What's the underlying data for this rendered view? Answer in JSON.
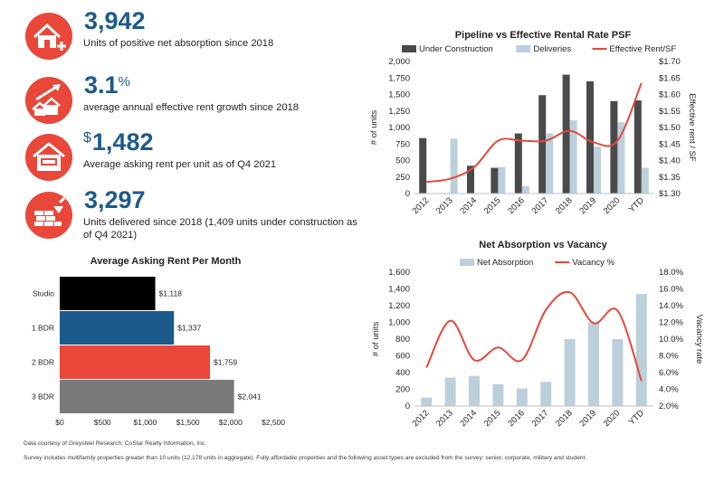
{
  "stats": [
    {
      "value": "3,942",
      "prefix": "",
      "suffix": "",
      "label": "Units of positive net absorption since 2018",
      "icon": "house-plus-icon"
    },
    {
      "value": "3.1",
      "prefix": "",
      "suffix": "%",
      "label": "average annual effective rent growth since 2018",
      "icon": "houses-growth-arrow-icon"
    },
    {
      "value": "1,482",
      "prefix": "$",
      "suffix": "",
      "label": "Average asking rent per unit as of Q4 2021",
      "icon": "rent-sign-house-icon"
    },
    {
      "value": "3,297",
      "prefix": "",
      "suffix": "",
      "label": "Units delivered since 2018 (1,409 units under construction as of Q4 2021)",
      "icon": "brick-wall-trowel-icon"
    }
  ],
  "colors": {
    "accent_red": "#e8473a",
    "value_blue": "#1d5a8c",
    "dark_bar": "#4a4a4a",
    "light_bar": "#bccfdb"
  },
  "footnotes": {
    "source": "Data courtesy of Greysteel Research; CoStar Realty Information, Inc.",
    "survey": "Survey includes multifamily properties greater than 10 units (12,178 units in aggregate). Fully affordable properties and the following asset types are excluded from the survey: senior, corporate, military and student."
  },
  "chart_data": [
    {
      "type": "bar",
      "orientation": "horizontal",
      "title": "Average Asking Rent Per Month",
      "categories": [
        "Studio",
        "1 BDR",
        "2 BDR",
        "3 BDR"
      ],
      "values": [
        1118,
        1337,
        1759,
        2041
      ],
      "value_labels": [
        "$1,118",
        "$1,337",
        "$1,759",
        "$2,041"
      ],
      "bar_colors": [
        "#000000",
        "#1d5a8c",
        "#e8473a",
        "#7a7a7a"
      ],
      "xlim": [
        0,
        2500
      ],
      "x_ticks": [
        "$0",
        "$500",
        "$1,000",
        "$1,500",
        "$2,000",
        "$2,500"
      ],
      "grid": false
    },
    {
      "type": "bar+line",
      "title": "Pipeline vs Effective Rental Rate PSF",
      "categories": [
        "2012",
        "2013",
        "2014",
        "2015",
        "2016",
        "2017",
        "2018",
        "2019",
        "2020",
        "YTD"
      ],
      "series": [
        {
          "name": "Under Construction",
          "type": "bar",
          "axis": "left",
          "color": "#4a4a4a",
          "values": [
            840,
            0,
            420,
            390,
            910,
            1490,
            1800,
            1700,
            1400,
            1410
          ]
        },
        {
          "name": "Deliveries",
          "type": "bar",
          "axis": "left",
          "color": "#bccfdb",
          "values": [
            0,
            830,
            0,
            400,
            110,
            910,
            1110,
            710,
            1080,
            390
          ]
        },
        {
          "name": "Effective Rent/SF",
          "type": "line",
          "axis": "right",
          "color": "#e8473a",
          "values": [
            1.335,
            1.345,
            1.38,
            1.46,
            1.46,
            1.46,
            1.49,
            1.455,
            1.46,
            1.635
          ]
        }
      ],
      "ylabel": "# of units",
      "y2label": "Effective rent / SF",
      "ylim": [
        0,
        2000
      ],
      "y2lim": [
        1.3,
        1.7
      ],
      "y_ticks": [
        "0",
        "250",
        "500",
        "750",
        "1,000",
        "1,250",
        "1,500",
        "1,750",
        "2,000"
      ],
      "y2_ticks": [
        "$1.30",
        "$1.35",
        "$1.40",
        "$1.45",
        "$1.50",
        "$1.55",
        "$1.60",
        "$1.65",
        "$1.70"
      ],
      "legend": "top",
      "grid": false
    },
    {
      "type": "bar+line",
      "title": "Net Absorption vs Vacancy",
      "categories": [
        "2012",
        "2013",
        "2014",
        "2015",
        "2016",
        "2017",
        "2018",
        "2019",
        "2020",
        "YTD"
      ],
      "series": [
        {
          "name": "Net Absorption",
          "type": "bar",
          "axis": "left",
          "color": "#bccfdb",
          "values": [
            100,
            340,
            360,
            260,
            210,
            290,
            800,
            1000,
            800,
            1340
          ]
        },
        {
          "name": "Vacancy %",
          "type": "line",
          "axis": "right",
          "color": "#e8473a",
          "values": [
            6.6,
            12.2,
            7.5,
            9.0,
            7.5,
            13.5,
            15.6,
            11.9,
            13.4,
            5.0
          ]
        }
      ],
      "ylabel": "# of units",
      "y2label": "Vacancy rate",
      "ylim": [
        0,
        1600
      ],
      "y2lim": [
        2.0,
        18.0
      ],
      "y_ticks": [
        "0",
        "200",
        "400",
        "600",
        "800",
        "1,000",
        "1,200",
        "1,400",
        "1,600"
      ],
      "y2_ticks": [
        "2.0%",
        "4.0%",
        "6.0%",
        "8.0%",
        "10.0%",
        "12.0%",
        "14.0%",
        "16.0%",
        "18.0%"
      ],
      "legend": "top",
      "grid": false
    }
  ]
}
